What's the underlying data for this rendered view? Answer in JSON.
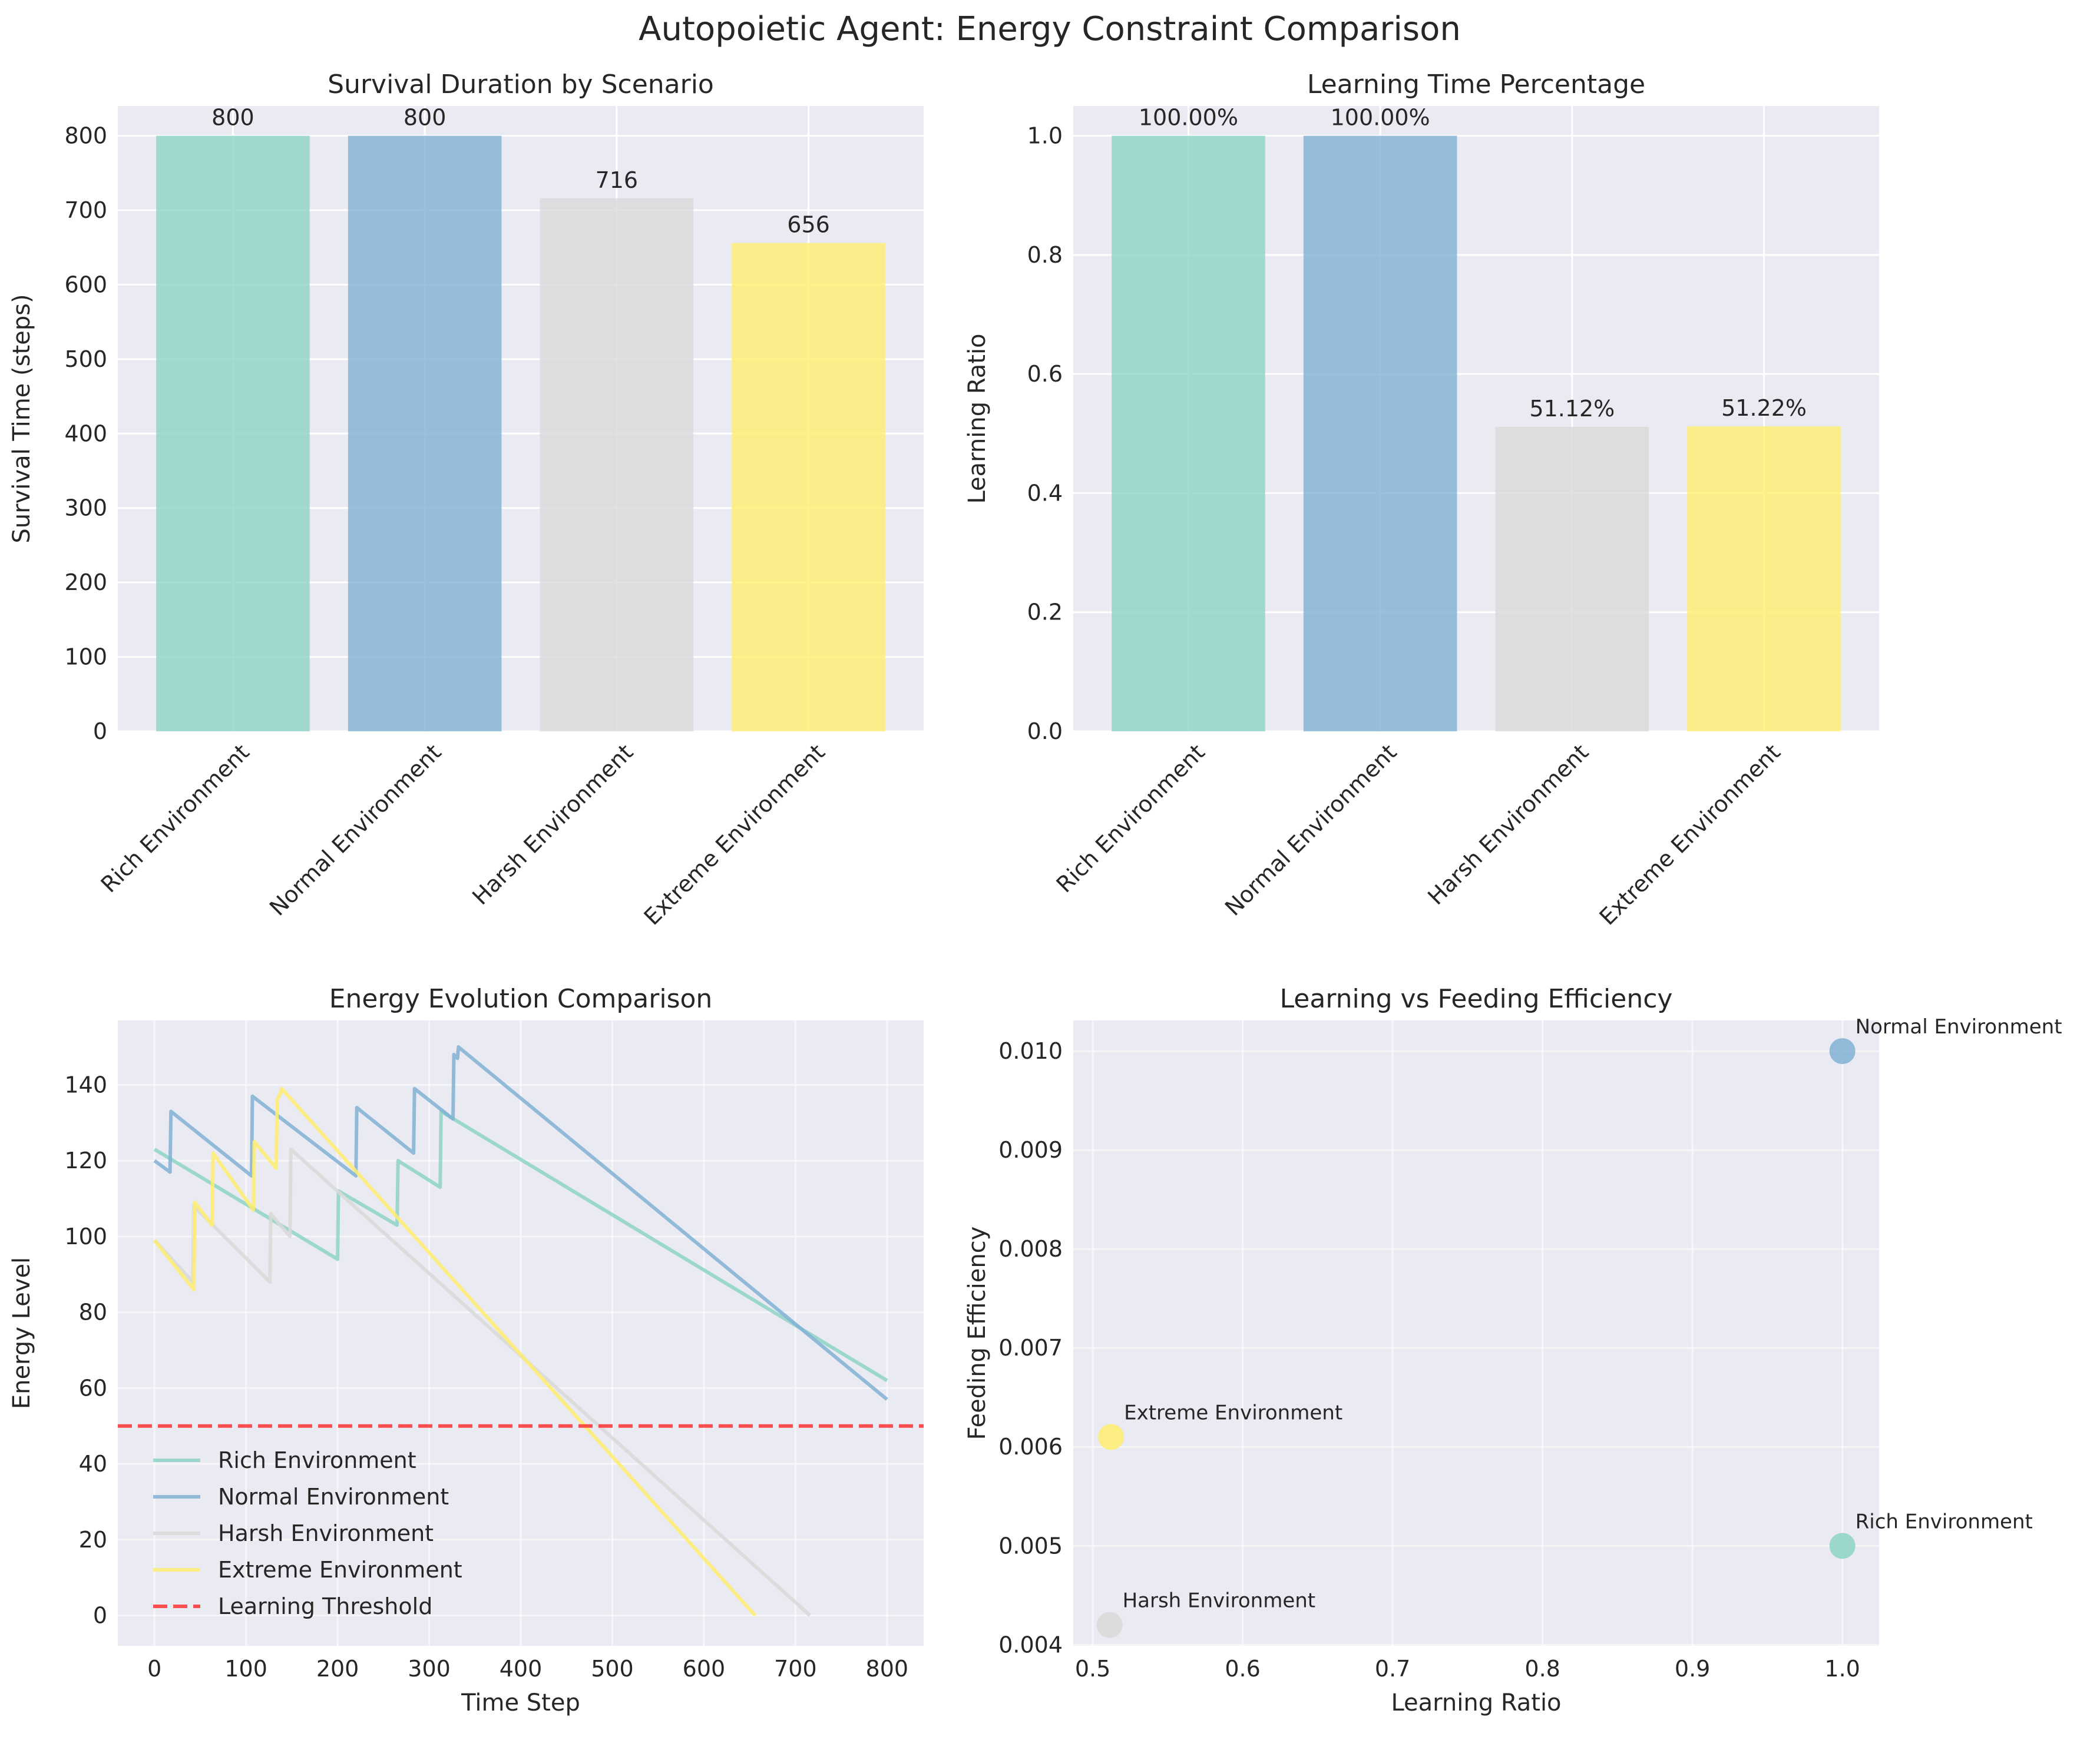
{
  "figure_title": "Autopoietic Agent: Energy Constraint Comparison",
  "colors": {
    "rich": "#8dd3c7",
    "normal": "#80b1d3",
    "harsh": "#d9d9d9",
    "extreme": "#ffed6f",
    "threshold": "#ff3333",
    "panel_bg": "#eaeaf2",
    "grid": "#ffffff"
  },
  "chart_data": [
    {
      "type": "bar",
      "title": "Survival Duration by Scenario",
      "xlabel": "",
      "ylabel": "Survival Time (steps)",
      "categories": [
        "Rich Environment",
        "Normal Environment",
        "Harsh Environment",
        "Extreme Environment"
      ],
      "values": [
        800,
        800,
        716,
        656
      ],
      "value_labels": [
        "800",
        "800",
        "716",
        "656"
      ],
      "ylim": [
        0,
        840
      ],
      "yticks": [
        0,
        100,
        200,
        300,
        400,
        500,
        600,
        700,
        800
      ],
      "ytick_labels": [
        "0",
        "100",
        "200",
        "300",
        "400",
        "500",
        "600",
        "700",
        "800"
      ],
      "grid": true
    },
    {
      "type": "bar",
      "title": "Learning Time Percentage",
      "xlabel": "",
      "ylabel": "Learning Ratio",
      "categories": [
        "Rich Environment",
        "Normal Environment",
        "Harsh Environment",
        "Extreme Environment"
      ],
      "values": [
        1.0,
        1.0,
        0.5112,
        0.5122
      ],
      "value_labels": [
        "100.00%",
        "100.00%",
        "51.12%",
        "51.22%"
      ],
      "ylim": [
        0,
        1.05
      ],
      "yticks": [
        0,
        0.2,
        0.4,
        0.6,
        0.8,
        1.0
      ],
      "ytick_labels": [
        "0.0",
        "0.2",
        "0.4",
        "0.6",
        "0.8",
        "1.0"
      ],
      "grid": true
    },
    {
      "type": "line",
      "title": "Energy Evolution Comparison",
      "xlabel": "Time Step",
      "ylabel": "Energy Level",
      "xlim": [
        -40,
        840
      ],
      "ylim": [
        -8,
        157
      ],
      "xticks": [
        0,
        100,
        200,
        300,
        400,
        500,
        600,
        700,
        800
      ],
      "xtick_labels": [
        "0",
        "100",
        "200",
        "300",
        "400",
        "500",
        "600",
        "700",
        "800"
      ],
      "yticks": [
        0,
        20,
        40,
        60,
        80,
        100,
        120,
        140
      ],
      "ytick_labels": [
        "0",
        "20",
        "40",
        "60",
        "80",
        "100",
        "120",
        "140"
      ],
      "legend_position": "lower-left",
      "grid": true,
      "series": [
        {
          "name": "Rich Environment",
          "color_key": "rich",
          "x": [
            0,
            200,
            201,
            265,
            266,
            312,
            313,
            800
          ],
          "y": [
            123,
            94,
            112,
            103,
            120,
            113,
            133,
            62
          ]
        },
        {
          "name": "Normal Environment",
          "color_key": "normal",
          "x": [
            0,
            17,
            18,
            106,
            107,
            220,
            221,
            283,
            284,
            326,
            327,
            331,
            332,
            800
          ],
          "y": [
            120,
            117,
            133,
            116,
            137,
            116,
            134,
            122,
            139,
            131,
            148,
            147,
            150,
            57
          ]
        },
        {
          "name": "Harsh Environment",
          "color_key": "harsh",
          "x": [
            0,
            42,
            43,
            126,
            127,
            148,
            149,
            716
          ],
          "y": [
            99,
            88,
            108,
            88,
            106,
            100,
            123,
            0
          ]
        },
        {
          "name": "Extreme Environment",
          "color_key": "extreme",
          "x": [
            0,
            43,
            44,
            63,
            64,
            108,
            109,
            133,
            134,
            138,
            139,
            656
          ],
          "y": [
            99,
            86,
            109,
            103,
            122,
            107,
            125,
            118,
            136,
            138,
            139,
            0
          ]
        }
      ],
      "threshold": {
        "name": "Learning Threshold",
        "y": 50,
        "color_key": "threshold"
      }
    },
    {
      "type": "scatter",
      "title": "Learning vs Feeding Efficiency",
      "xlabel": "Learning Ratio",
      "ylabel": "Feeding Efficiency",
      "xlim": [
        0.487,
        1.0245
      ],
      "ylim": [
        0.00399,
        0.01031
      ],
      "xticks": [
        0.5,
        0.6,
        0.7,
        0.8,
        0.9,
        1.0
      ],
      "xtick_labels": [
        "0.5",
        "0.6",
        "0.7",
        "0.8",
        "0.9",
        "1.0"
      ],
      "yticks": [
        0.004,
        0.005,
        0.006,
        0.007,
        0.008,
        0.009,
        0.01
      ],
      "ytick_labels": [
        "0.004",
        "0.005",
        "0.006",
        "0.007",
        "0.008",
        "0.009",
        "0.010"
      ],
      "grid": true,
      "points": [
        {
          "label": "Rich Environment",
          "x": 1.0,
          "y": 0.005,
          "color_key": "rich"
        },
        {
          "label": "Normal Environment",
          "x": 1.0,
          "y": 0.01,
          "color_key": "normal"
        },
        {
          "label": "Harsh Environment",
          "x": 0.5112,
          "y": 0.0042,
          "color_key": "harsh"
        },
        {
          "label": "Extreme Environment",
          "x": 0.5122,
          "y": 0.0061,
          "color_key": "extreme"
        }
      ]
    }
  ]
}
